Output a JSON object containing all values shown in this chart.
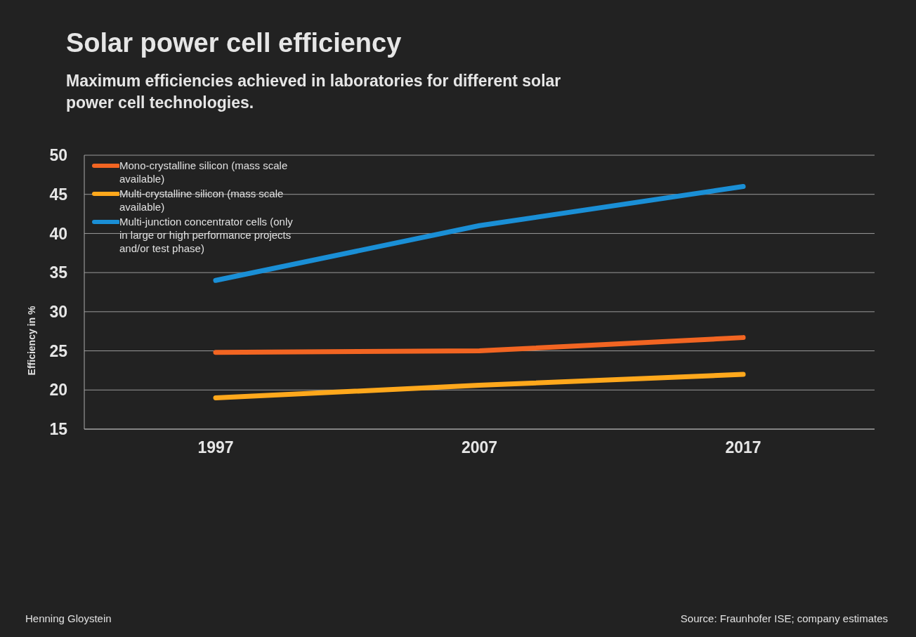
{
  "chart_data": {
    "type": "line",
    "title": "Solar power cell efficiency",
    "subtitle": "Maximum efficiencies achieved in laboratories for different solar power cell technologies.",
    "ylabel": "Efficiency in %",
    "categories": [
      "1997",
      "2007",
      "2017"
    ],
    "series": [
      {
        "name": "Mono-crystalline silicon (mass scale available)",
        "color": "#f26522",
        "values": [
          24.8,
          25,
          26.7
        ]
      },
      {
        "name": "Multi-crystalline silicon (mass scale available)",
        "color": "#ffa81c",
        "values": [
          19,
          20.6,
          22
        ]
      },
      {
        "name": "Multi-junction concentrator cells (only in large or high performance projects and/or test phase)",
        "color": "#1a8fd6",
        "values": [
          34,
          41,
          46
        ]
      }
    ],
    "ylim": [
      15,
      50
    ],
    "yticks": [
      15,
      20,
      25,
      30,
      35,
      40,
      45,
      50
    ],
    "grid": "y",
    "legend": "top left",
    "marker": "none",
    "line_style": "solid",
    "annotations": [
      "Henning Gloystein",
      "Source: Fraunhofer ISE; company estimates"
    ]
  }
}
